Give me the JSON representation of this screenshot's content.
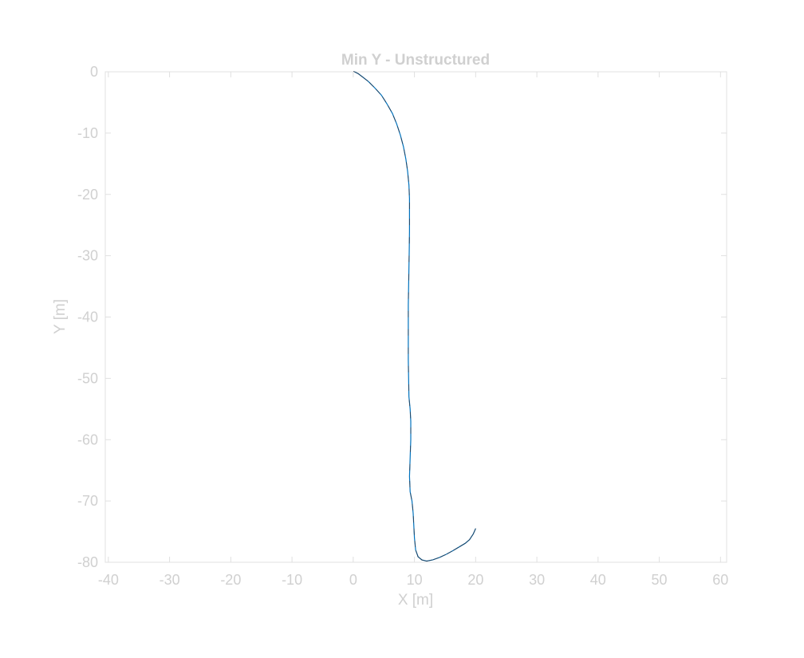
{
  "chart_data": {
    "type": "line",
    "title": "Min Y - Unstructured",
    "xlabel": "X [m]",
    "ylabel": "Y [m]",
    "xlim": [
      -40.5,
      61
    ],
    "ylim": [
      -80,
      0
    ],
    "xticks": [
      -40,
      -30,
      -20,
      -10,
      0,
      10,
      20,
      30,
      40,
      50,
      60
    ],
    "yticks": [
      0,
      -10,
      -20,
      -30,
      -40,
      -50,
      -60,
      -70,
      -80
    ],
    "grid": false,
    "colors": {
      "axes": "#e0e0e0",
      "text": "#d0d0d0",
      "series": "#0072bd"
    },
    "series": [
      {
        "x": [
          0.2,
          0.8,
          1.6,
          2.5,
          3.5,
          4.6,
          5.5,
          6.4,
          7.1,
          7.7,
          8.2,
          8.6,
          8.9,
          9.1,
          9.2,
          9.2,
          9.2,
          9.15,
          9.1,
          9.05,
          9.0,
          9.0,
          9.0,
          9.0,
          9.05,
          9.1,
          9.3,
          9.4,
          9.4,
          9.3,
          9.2,
          9.3,
          9.6,
          9.8,
          9.9,
          10.0,
          10.2,
          10.6,
          11.2,
          12.0,
          13.0,
          14.1,
          15.2,
          16.3,
          17.3,
          18.3,
          19.0,
          19.6,
          20.0
        ],
        "y": [
          0,
          -0.3,
          -0.9,
          -1.6,
          -2.6,
          -3.8,
          -5.2,
          -6.8,
          -8.5,
          -10.3,
          -12.2,
          -14.2,
          -16.3,
          -18.5,
          -20.7,
          -23,
          -26,
          -29,
          -32,
          -35,
          -38,
          -41,
          -44,
          -47,
          -50,
          -53,
          -55,
          -57,
          -60,
          -63,
          -66,
          -68.5,
          -70,
          -72,
          -74,
          -76,
          -78,
          -79.1,
          -79.6,
          -79.8,
          -79.6,
          -79.2,
          -78.7,
          -78.1,
          -77.5,
          -76.9,
          -76.3,
          -75.4,
          -74.5
        ]
      }
    ]
  }
}
